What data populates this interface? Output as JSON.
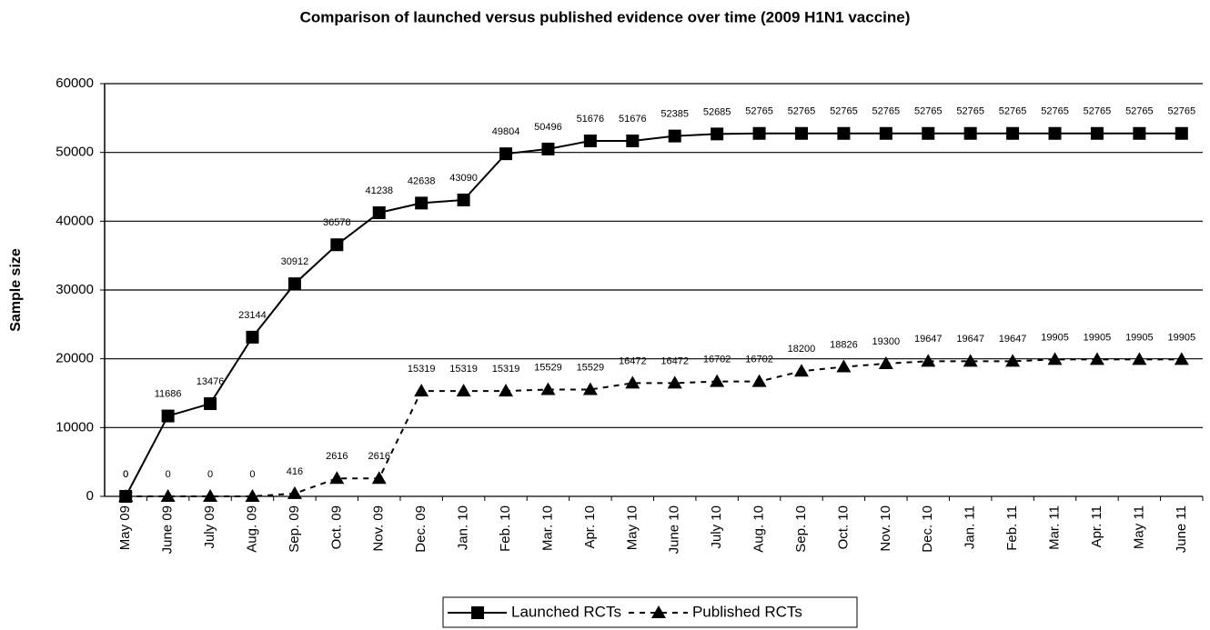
{
  "chart_data": {
    "type": "line",
    "title": "Comparison of launched versus published evidence over time (2009 H1N1 vaccine)",
    "y_label": "Sample size",
    "categories": [
      "May 09",
      "June 09",
      "July 09",
      "Aug. 09",
      "Sep. 09",
      "Oct. 09",
      "Nov. 09",
      "Dec. 09",
      "Jan. 10",
      "Feb. 10",
      "Mar. 10",
      "Apr. 10",
      "May 10",
      "June 10",
      "July 10",
      "Aug. 10",
      "Sep. 10",
      "Oct. 10",
      "Nov. 10",
      "Dec. 10",
      "Jan. 11",
      "Feb. 11",
      "Mar. 11",
      "Apr. 11",
      "May 11",
      "June 11"
    ],
    "series": [
      {
        "name": "Launched RCTs",
        "color": "#000000",
        "marker": "square",
        "dashed": false,
        "values": [
          0,
          11686,
          13476,
          23144,
          30912,
          36578,
          41238,
          42638,
          43090,
          49804,
          50496,
          51676,
          51676,
          52385,
          52685,
          52765,
          52765,
          52765,
          52765,
          52765,
          52765,
          52765,
          52765,
          52765,
          52765,
          52765
        ]
      },
      {
        "name": "Published RCTs",
        "color": "#000000",
        "marker": "triangle",
        "dashed": true,
        "values": [
          0,
          0,
          0,
          0,
          416,
          2616,
          2616,
          15319,
          15319,
          15319,
          15529,
          15529,
          16472,
          16472,
          16702,
          16702,
          18200,
          18826,
          19300,
          19647,
          19647,
          19647,
          19905,
          19905,
          19905,
          19905
        ]
      }
    ],
    "ylim": [
      0,
      60000
    ],
    "yticks": [
      0,
      10000,
      20000,
      30000,
      40000,
      50000,
      60000
    ],
    "grid": true,
    "legend": "bottom"
  }
}
